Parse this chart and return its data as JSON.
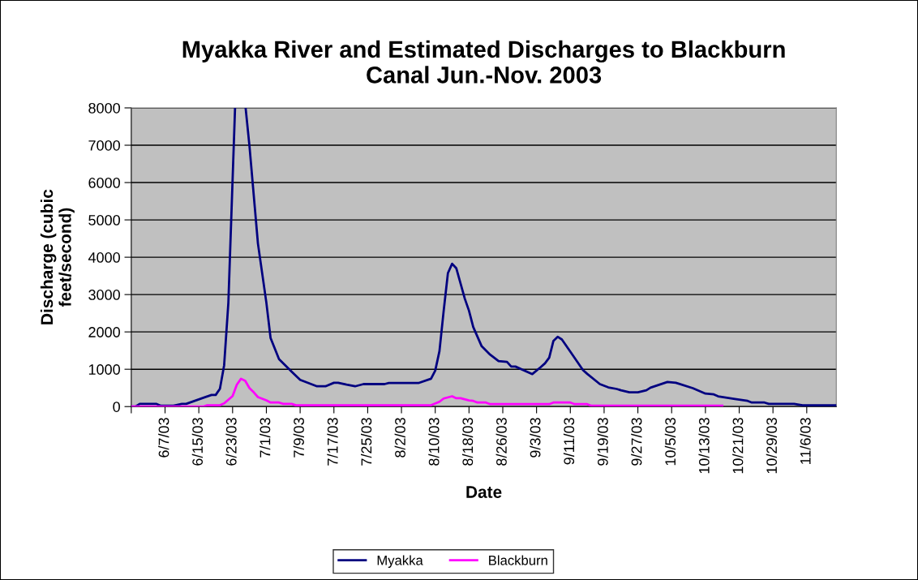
{
  "chart_data": {
    "type": "line",
    "title": "Myakka River and Estimated Discharges to Blackburn\nCanal Jun.-Nov. 2003",
    "xlabel": "Date",
    "ylabel": "Discharge (cubic\nfeet/second)",
    "xlim": [
      "2003-05-30",
      "2003-11-13"
    ],
    "xticks": [
      {
        "value": "2003-05-30",
        "label": null
      },
      {
        "value": "2003-06-07",
        "label": "6/7/03"
      },
      {
        "value": "2003-06-15",
        "label": "6/15/03"
      },
      {
        "value": "2003-06-23",
        "label": "6/23/03"
      },
      {
        "value": "2003-07-01",
        "label": "7/1/03"
      },
      {
        "value": "2003-07-09",
        "label": "7/9/03"
      },
      {
        "value": "2003-07-17",
        "label": "7/17/03"
      },
      {
        "value": "2003-07-25",
        "label": "7/25/03"
      },
      {
        "value": "2003-08-02",
        "label": "8/2/03"
      },
      {
        "value": "2003-08-10",
        "label": "8/10/03"
      },
      {
        "value": "2003-08-18",
        "label": "8/18/03"
      },
      {
        "value": "2003-08-26",
        "label": "8/26/03"
      },
      {
        "value": "2003-09-03",
        "label": "9/3/03"
      },
      {
        "value": "2003-09-11",
        "label": "9/11/03"
      },
      {
        "value": "2003-09-19",
        "label": "9/19/03"
      },
      {
        "value": "2003-09-27",
        "label": "9/27/03"
      },
      {
        "value": "2003-10-05",
        "label": "10/5/03"
      },
      {
        "value": "2003-10-13",
        "label": "10/13/03"
      },
      {
        "value": "2003-10-21",
        "label": "10/21/03"
      },
      {
        "value": "2003-10-29",
        "label": "10/29/03"
      },
      {
        "value": "2003-11-06",
        "label": "11/6/03"
      }
    ],
    "ylim": [
      0,
      8000
    ],
    "yticks": [
      0,
      1000,
      2000,
      3000,
      4000,
      5000,
      6000,
      7000,
      8000
    ],
    "grid": "y",
    "legend": "bottom",
    "marker": "none",
    "line_style": "solid",
    "series": [
      {
        "name": "Myakka",
        "color": "#000080",
        "x": [
          "2003-05-30",
          "2003-05-31",
          "2003-06-01",
          "2003-06-05",
          "2003-06-06",
          "2003-06-09",
          "2003-06-11",
          "2003-06-12",
          "2003-06-18",
          "2003-06-19",
          "2003-06-20",
          "2003-06-21",
          "2003-06-22",
          "2003-06-23T14:00",
          "2003-06-24",
          "2003-06-25",
          "2003-06-26T02:00",
          "2003-06-27",
          "2003-06-29",
          "2003-07-01",
          "2003-07-02",
          "2003-07-04",
          "2003-07-07",
          "2003-07-09",
          "2003-07-13",
          "2003-07-15",
          "2003-07-17",
          "2003-07-18",
          "2003-07-20",
          "2003-07-22",
          "2003-07-24",
          "2003-07-29",
          "2003-07-30",
          "2003-08-06",
          "2003-08-09",
          "2003-08-10",
          "2003-08-11",
          "2003-08-12",
          "2003-08-13",
          "2003-08-14",
          "2003-08-15",
          "2003-08-17",
          "2003-08-18",
          "2003-08-19",
          "2003-08-21",
          "2003-08-23",
          "2003-08-25",
          "2003-08-27",
          "2003-08-28",
          "2003-08-29",
          "2003-09-02",
          "2003-09-04",
          "2003-09-05",
          "2003-09-06",
          "2003-09-07",
          "2003-09-08",
          "2003-09-09",
          "2003-09-11",
          "2003-09-14",
          "2003-09-15",
          "2003-09-18",
          "2003-09-20",
          "2003-09-22",
          "2003-09-23",
          "2003-09-25",
          "2003-09-27",
          "2003-09-29",
          "2003-09-30",
          "2003-10-04",
          "2003-10-06",
          "2003-10-10",
          "2003-10-13",
          "2003-10-15",
          "2003-10-16",
          "2003-10-20",
          "2003-10-23",
          "2003-10-24",
          "2003-10-27",
          "2003-10-28",
          "2003-11-03",
          "2003-11-05",
          "2003-11-13"
        ],
        "values": [
          0,
          0,
          72,
          72,
          22,
          22,
          72,
          72,
          311,
          311,
          478,
          1109,
          2783,
          8000,
          null,
          null,
          8000,
          6978,
          4370,
          2783,
          1833,
          1268,
          935,
          717,
          543,
          543,
          637,
          637,
          587,
          543,
          602,
          602,
          630,
          630,
          746,
          964,
          1485,
          2565,
          3572,
          3826,
          3703,
          2891,
          2565,
          2130,
          1616,
          1391,
          1217,
          1196,
          1072,
          1072,
          870,
          1059,
          1159,
          1311,
          1761,
          1870,
          1798,
          1472,
          978,
          876,
          602,
          515,
          472,
          435,
          384,
          384,
          435,
          507,
          659,
          637,
          493,
          348,
          326,
          276,
          202,
          152,
          109,
          109,
          72,
          72,
          36,
          36
        ]
      },
      {
        "name": "Blackburn",
        "color": "#ff00ff",
        "x": [
          "2003-05-30",
          "2003-06-16",
          "2003-06-17",
          "2003-06-20",
          "2003-06-21",
          "2003-06-23",
          "2003-06-24",
          "2003-06-25",
          "2003-06-26",
          "2003-06-27",
          "2003-06-28",
          "2003-06-29",
          "2003-07-01",
          "2003-07-02",
          "2003-07-04",
          "2003-07-05",
          "2003-07-07",
          "2003-07-08",
          "2003-08-09",
          "2003-08-11",
          "2003-08-12",
          "2003-08-14",
          "2003-08-15",
          "2003-08-16",
          "2003-08-18",
          "2003-08-19",
          "2003-08-20",
          "2003-08-22",
          "2003-08-23",
          "2003-09-06",
          "2003-09-07",
          "2003-09-11",
          "2003-09-12",
          "2003-09-15",
          "2003-09-16",
          "2003-10-17"
        ],
        "values": [
          0,
          0,
          36,
          36,
          87,
          283,
          587,
          746,
          688,
          493,
          384,
          254,
          167,
          109,
          109,
          72,
          72,
          36,
          36,
          130,
          217,
          276,
          224,
          224,
          167,
          152,
          109,
          109,
          65,
          65,
          109,
          109,
          65,
          65,
          22,
          22
        ]
      }
    ]
  }
}
